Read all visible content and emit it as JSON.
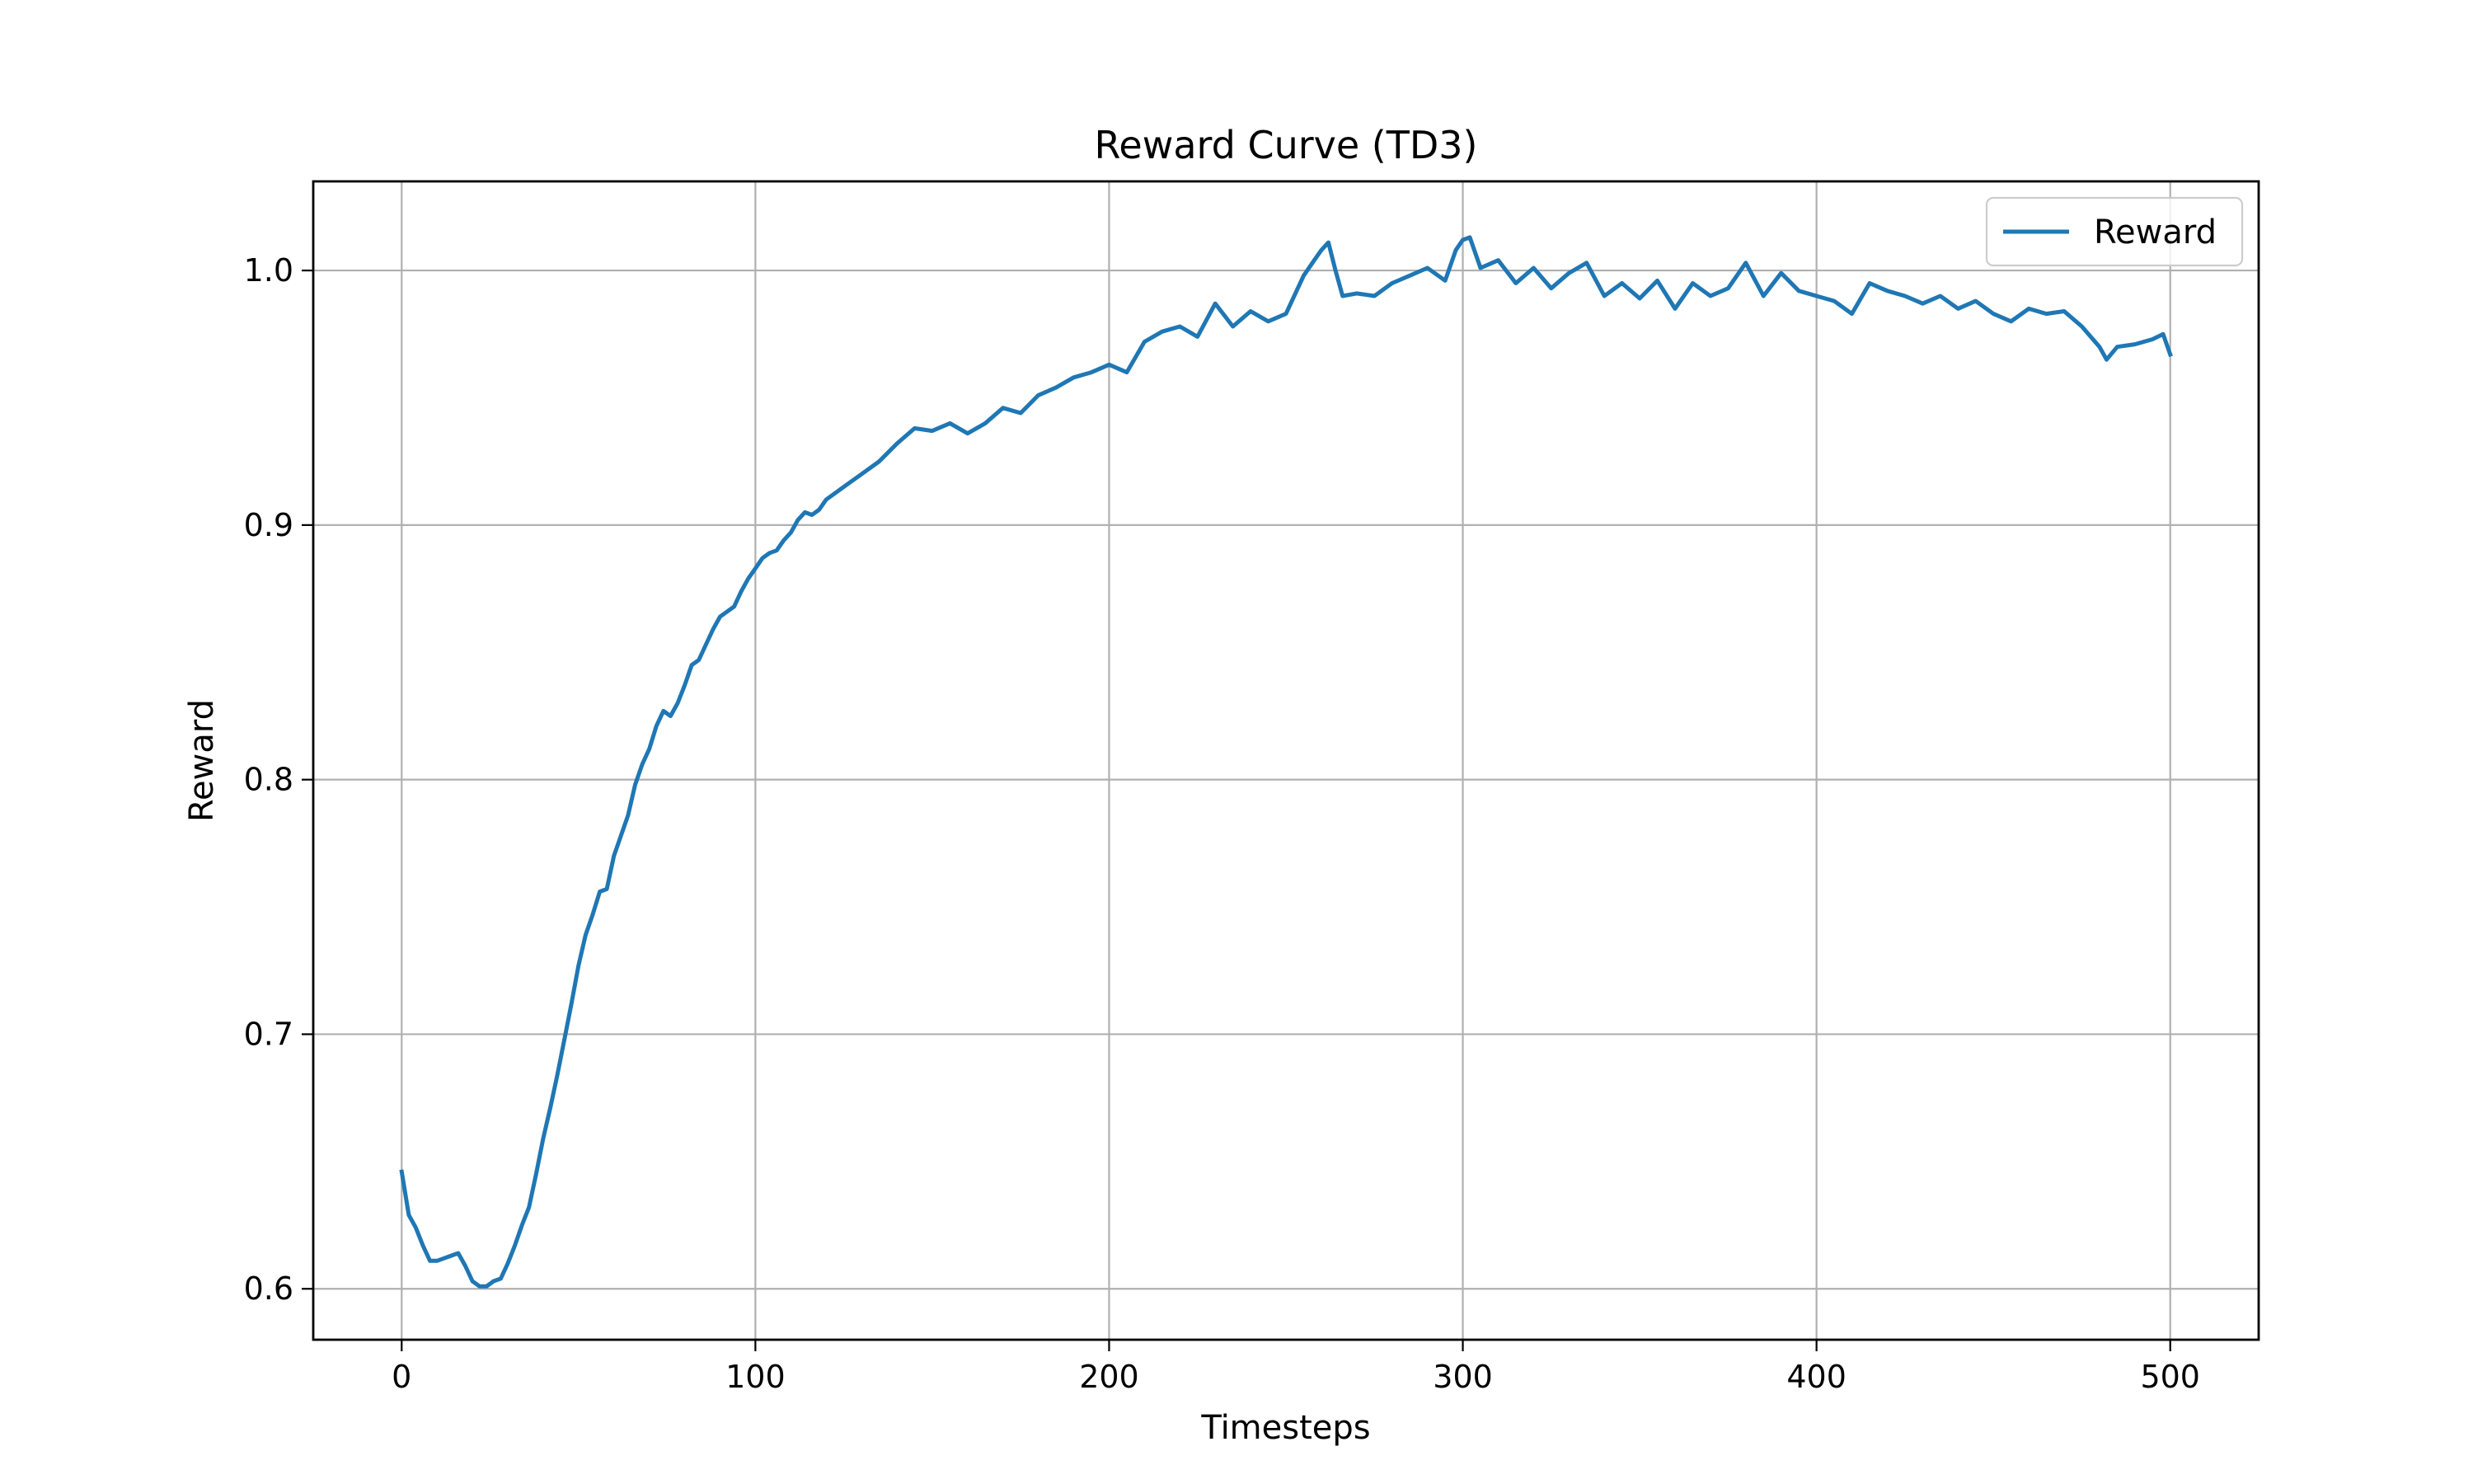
{
  "chart_data": {
    "type": "line",
    "title": "Reward Curve (TD3)",
    "xlabel": "Timesteps",
    "ylabel": "Reward",
    "xlim": [
      -25,
      525
    ],
    "ylim": [
      0.58,
      1.035
    ],
    "xticks": [
      0,
      100,
      200,
      300,
      400,
      500
    ],
    "xtick_labels": [
      "0",
      "100",
      "200",
      "300",
      "400",
      "500"
    ],
    "yticks": [
      0.6,
      0.7,
      0.8,
      0.9,
      1.0
    ],
    "ytick_labels": [
      "0.6",
      "0.7",
      "0.8",
      "0.9",
      "1.0"
    ],
    "grid": true,
    "legend": {
      "position": "top-right",
      "entries": [
        "Reward"
      ]
    },
    "series": [
      {
        "name": "Reward",
        "color": "#1f77b4",
        "x": [
          0,
          2,
          4,
          6,
          8,
          10,
          12,
          14,
          16,
          18,
          20,
          22,
          24,
          26,
          28,
          30,
          32,
          34,
          36,
          38,
          40,
          42,
          44,
          46,
          48,
          50,
          52,
          54,
          56,
          58,
          60,
          62,
          64,
          66,
          68,
          70,
          72,
          74,
          76,
          78,
          80,
          82,
          84,
          86,
          88,
          90,
          92,
          94,
          96,
          98,
          100,
          102,
          104,
          106,
          108,
          110,
          112,
          114,
          116,
          118,
          120,
          125,
          130,
          135,
          140,
          145,
          150,
          155,
          160,
          165,
          170,
          175,
          180,
          185,
          190,
          195,
          200,
          205,
          210,
          215,
          220,
          225,
          230,
          235,
          240,
          245,
          250,
          255,
          258,
          260,
          262,
          264,
          266,
          270,
          275,
          280,
          285,
          290,
          295,
          298,
          300,
          302,
          305,
          310,
          315,
          320,
          325,
          330,
          335,
          340,
          345,
          350,
          355,
          360,
          365,
          370,
          375,
          380,
          385,
          390,
          395,
          400,
          405,
          410,
          415,
          420,
          425,
          430,
          435,
          440,
          445,
          450,
          455,
          460,
          465,
          470,
          475,
          480,
          482,
          485,
          490,
          495,
          498,
          500
        ],
        "y": [
          0.646,
          0.629,
          0.624,
          0.617,
          0.611,
          0.611,
          0.612,
          0.613,
          0.614,
          0.609,
          0.603,
          0.601,
          0.601,
          0.603,
          0.604,
          0.61,
          0.617,
          0.625,
          0.632,
          0.645,
          0.659,
          0.671,
          0.684,
          0.698,
          0.712,
          0.727,
          0.739,
          0.747,
          0.756,
          0.757,
          0.77,
          0.778,
          0.786,
          0.798,
          0.806,
          0.812,
          0.821,
          0.827,
          0.825,
          0.83,
          0.837,
          0.845,
          0.847,
          0.853,
          0.859,
          0.864,
          0.866,
          0.868,
          0.874,
          0.879,
          0.883,
          0.887,
          0.889,
          0.89,
          0.894,
          0.897,
          0.902,
          0.905,
          0.904,
          0.906,
          0.91,
          0.915,
          0.92,
          0.925,
          0.932,
          0.938,
          0.937,
          0.94,
          0.936,
          0.94,
          0.946,
          0.944,
          0.951,
          0.954,
          0.958,
          0.96,
          0.963,
          0.96,
          0.972,
          0.976,
          0.978,
          0.974,
          0.987,
          0.978,
          0.984,
          0.98,
          0.983,
          0.998,
          1.004,
          1.008,
          1.011,
          1.0,
          0.99,
          0.991,
          0.99,
          0.995,
          0.998,
          1.001,
          0.996,
          1.008,
          1.012,
          1.013,
          1.001,
          1.004,
          0.995,
          1.001,
          0.993,
          0.999,
          1.003,
          0.99,
          0.995,
          0.989,
          0.996,
          0.985,
          0.995,
          0.99,
          0.993,
          1.003,
          0.99,
          0.999,
          0.992,
          0.99,
          0.988,
          0.983,
          0.995,
          0.992,
          0.99,
          0.987,
          0.99,
          0.985,
          0.988,
          0.983,
          0.98,
          0.985,
          0.983,
          0.984,
          0.978,
          0.97,
          0.965,
          0.97,
          0.971,
          0.973,
          0.975,
          0.967
        ]
      }
    ]
  }
}
